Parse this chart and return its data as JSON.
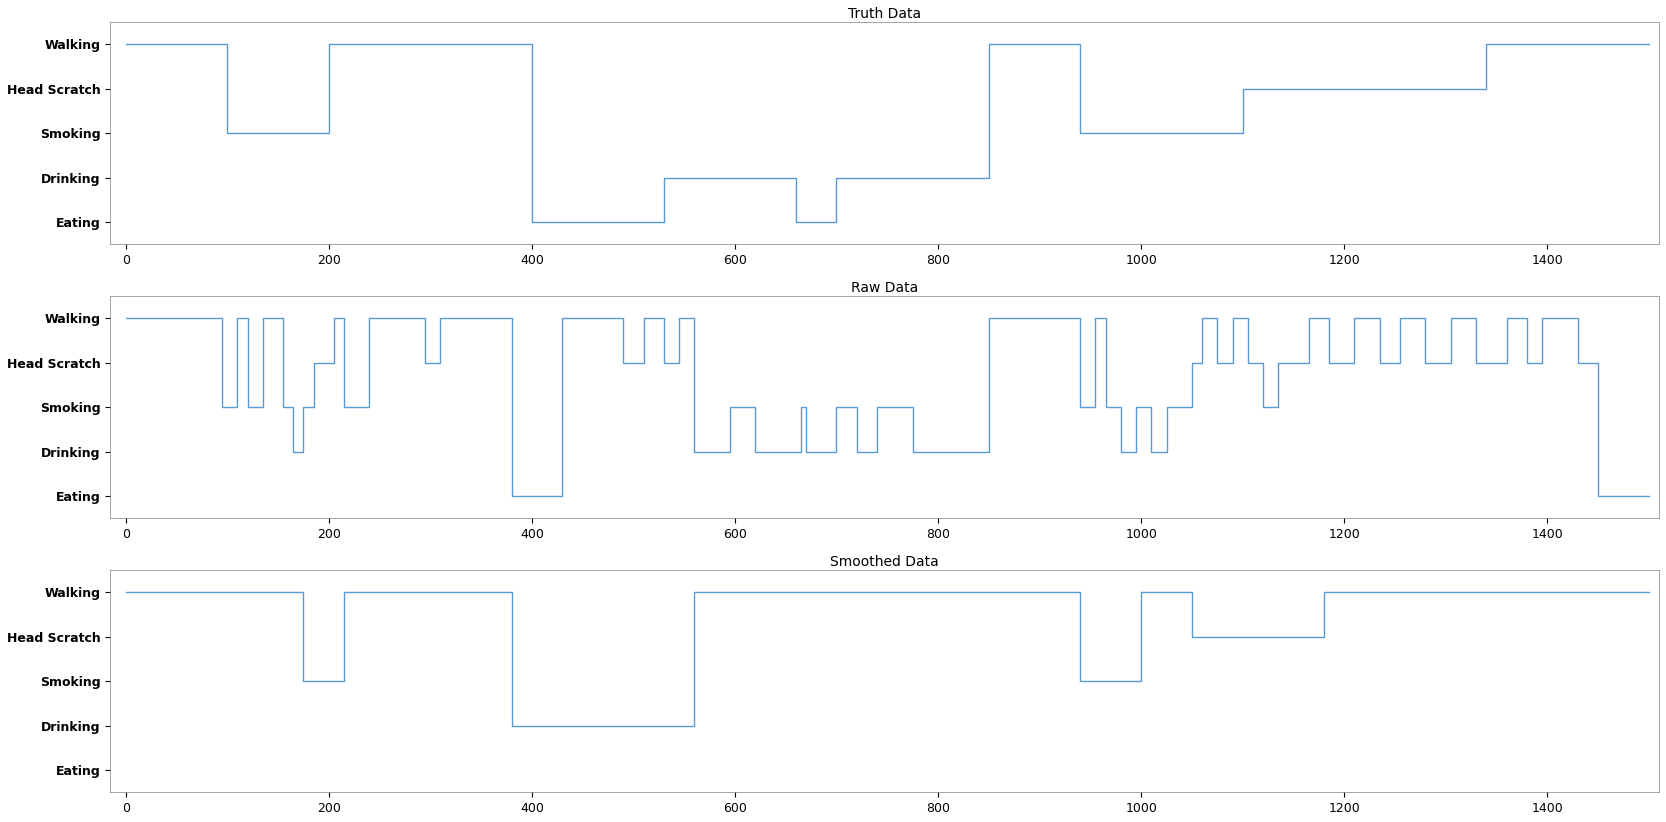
{
  "subplot_titles": [
    "Truth Data",
    "Raw Data",
    "Smoothed Data"
  ],
  "categories": [
    "Walking",
    "Head Scratch",
    "Smoking",
    "Drinking",
    "Eating"
  ],
  "xlim": [
    -15,
    1510
  ],
  "xticks": [
    0,
    200,
    400,
    600,
    800,
    1000,
    1200,
    1400
  ],
  "line_color": "#5b9bd5",
  "line_width": 1.0,
  "truth_data": [
    [
      0,
      100,
      5
    ],
    [
      100,
      200,
      3
    ],
    [
      200,
      400,
      5
    ],
    [
      400,
      530,
      1
    ],
    [
      530,
      560,
      2
    ],
    [
      560,
      660,
      2
    ],
    [
      660,
      700,
      1
    ],
    [
      700,
      850,
      2
    ],
    [
      850,
      940,
      5
    ],
    [
      940,
      1050,
      3
    ],
    [
      1050,
      1100,
      3
    ],
    [
      1100,
      1340,
      4
    ],
    [
      1340,
      1500,
      5
    ]
  ],
  "raw_data": [
    [
      0,
      95,
      5
    ],
    [
      95,
      110,
      3
    ],
    [
      110,
      120,
      5
    ],
    [
      120,
      135,
      3
    ],
    [
      135,
      155,
      5
    ],
    [
      155,
      165,
      3
    ],
    [
      165,
      175,
      2
    ],
    [
      175,
      185,
      3
    ],
    [
      185,
      205,
      4
    ],
    [
      205,
      215,
      5
    ],
    [
      215,
      240,
      3
    ],
    [
      240,
      295,
      5
    ],
    [
      295,
      310,
      4
    ],
    [
      310,
      330,
      5
    ],
    [
      330,
      380,
      5
    ],
    [
      380,
      430,
      1
    ],
    [
      430,
      490,
      5
    ],
    [
      490,
      510,
      4
    ],
    [
      510,
      530,
      5
    ],
    [
      530,
      545,
      4
    ],
    [
      545,
      560,
      5
    ],
    [
      560,
      580,
      2
    ],
    [
      580,
      595,
      2
    ],
    [
      595,
      620,
      3
    ],
    [
      620,
      650,
      2
    ],
    [
      650,
      665,
      2
    ],
    [
      665,
      670,
      3
    ],
    [
      670,
      700,
      2
    ],
    [
      700,
      720,
      3
    ],
    [
      720,
      740,
      2
    ],
    [
      740,
      775,
      3
    ],
    [
      775,
      850,
      2
    ],
    [
      850,
      940,
      5
    ],
    [
      940,
      955,
      3
    ],
    [
      955,
      965,
      5
    ],
    [
      965,
      980,
      3
    ],
    [
      980,
      995,
      2
    ],
    [
      995,
      1010,
      3
    ],
    [
      1010,
      1025,
      2
    ],
    [
      1025,
      1050,
      3
    ],
    [
      1050,
      1060,
      4
    ],
    [
      1060,
      1075,
      5
    ],
    [
      1075,
      1090,
      4
    ],
    [
      1090,
      1105,
      5
    ],
    [
      1105,
      1120,
      4
    ],
    [
      1120,
      1135,
      3
    ],
    [
      1135,
      1165,
      4
    ],
    [
      1165,
      1185,
      5
    ],
    [
      1185,
      1210,
      4
    ],
    [
      1210,
      1235,
      5
    ],
    [
      1235,
      1255,
      4
    ],
    [
      1255,
      1280,
      5
    ],
    [
      1280,
      1305,
      4
    ],
    [
      1305,
      1330,
      5
    ],
    [
      1330,
      1360,
      4
    ],
    [
      1360,
      1380,
      5
    ],
    [
      1380,
      1395,
      4
    ],
    [
      1395,
      1430,
      5
    ],
    [
      1430,
      1450,
      4
    ],
    [
      1450,
      1500,
      1
    ]
  ],
  "smoothed_data": [
    [
      0,
      100,
      5
    ],
    [
      100,
      175,
      5
    ],
    [
      175,
      215,
      3
    ],
    [
      215,
      310,
      5
    ],
    [
      310,
      380,
      5
    ],
    [
      380,
      500,
      2
    ],
    [
      500,
      560,
      2
    ],
    [
      560,
      860,
      5
    ],
    [
      860,
      940,
      5
    ],
    [
      940,
      1000,
      3
    ],
    [
      1000,
      1050,
      5
    ],
    [
      1050,
      1180,
      4
    ],
    [
      1180,
      1340,
      5
    ],
    [
      1340,
      1500,
      5
    ]
  ]
}
